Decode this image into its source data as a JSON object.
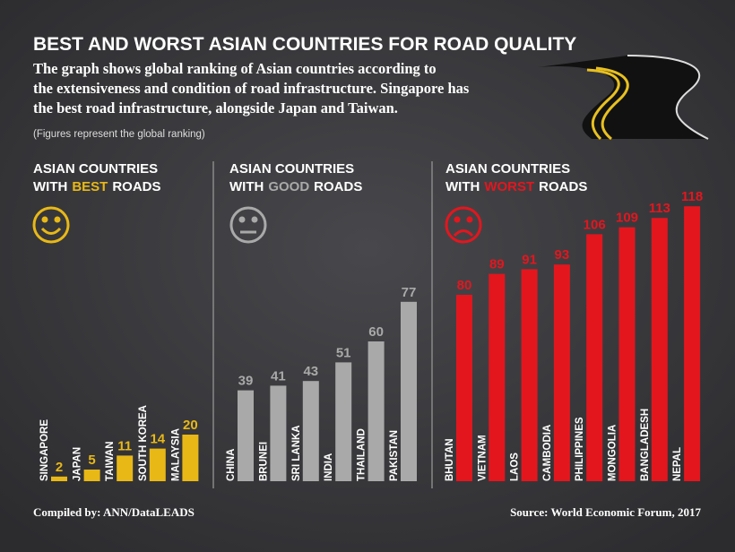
{
  "header": {
    "title": "BEST AND WORST ASIAN COUNTRIES FOR ROAD QUALITY",
    "description": [
      "The graph shows global ranking of Asian countries according to",
      "the extensiveness and condition of road infrastructure. Singapore has",
      "the best road infrastructure, alongside Japan and Taiwan."
    ],
    "note": "(Figures represent the global ranking)"
  },
  "chart_data": [
    {
      "type": "bar",
      "title": [
        "ASIAN COUNTRIES",
        "WITH",
        "BEST",
        "ROADS"
      ],
      "accent": "#e8b817",
      "categories": [
        "SINGAPORE",
        "JAPAN",
        "TAIWAN",
        "SOUTH KOREA",
        "MALAYSIA"
      ],
      "values": [
        2,
        5,
        11,
        14,
        20
      ],
      "color": "#e8b817",
      "label_color": "#e8b817"
    },
    {
      "type": "bar",
      "title": [
        "ASIAN COUNTRIES",
        "WITH",
        "GOOD",
        "ROADS"
      ],
      "accent": "#a9a9a9",
      "categories": [
        "CHINA",
        "BRUNEI",
        "SRI LANKA",
        "INDIA",
        "THAILAND",
        "PAKISTAN"
      ],
      "values": [
        39,
        41,
        43,
        51,
        60,
        77
      ],
      "color": "#a9a9a9",
      "label_color": "#a9a9a9"
    },
    {
      "type": "bar",
      "title": [
        "ASIAN COUNTRIES",
        "WITH",
        "WORST",
        "ROADS"
      ],
      "accent": "#e3161e",
      "categories": [
        "BHUTAN",
        "VIETNAM",
        "LAOS",
        "CAMBODIA",
        "PHILIPPINES",
        "MONGOLIA",
        "BANGLADESH",
        "NEPAL"
      ],
      "values": [
        80,
        89,
        91,
        93,
        106,
        109,
        113,
        118
      ],
      "color": "#e3161e",
      "label_color": "#e3161e"
    }
  ],
  "footer": {
    "credit": "Compiled by: ANN/DataLEADS",
    "source": "Source: World Economic Forum, 2017"
  }
}
